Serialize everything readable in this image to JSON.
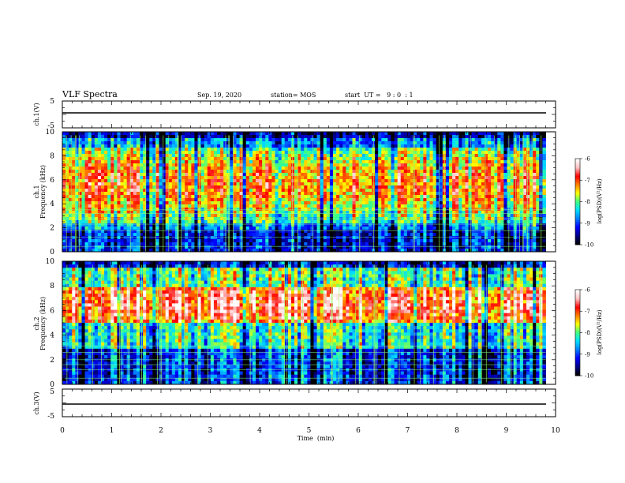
{
  "header": {
    "title": "VLF Spectra",
    "date": "Sep. 19, 2020",
    "station": "station= MOS",
    "start": "start  UT =   9 : 0  : 1"
  },
  "colors": {
    "colormap": [
      "#000000",
      "#00008b",
      "#0000ff",
      "#0080ff",
      "#00e0ff",
      "#40ff80",
      "#ffff00",
      "#ff8000",
      "#ff0000",
      "#ffc0c0",
      "#ffffff"
    ],
    "trace": "#000000"
  },
  "chart_data": [
    {
      "type": "line",
      "name": "ch1-waveform",
      "ylabel": "ch.1(V)",
      "ylim": [
        -5,
        5
      ],
      "yticks": [
        "5",
        "-5"
      ],
      "xlim": [
        0,
        10
      ],
      "series": [
        {
          "x": [
            0,
            9.8
          ],
          "y": [
            0,
            0
          ]
        }
      ]
    },
    {
      "type": "heatmap",
      "name": "ch1-spectrogram",
      "ylabel_lines": [
        "ch.1",
        "Frequency (kHz)"
      ],
      "ylim": [
        0,
        10
      ],
      "yticks": [
        "0",
        "2",
        "4",
        "6",
        "8",
        "10"
      ],
      "xlim": [
        0,
        10
      ],
      "data_x_end_min": 9.8,
      "band_peak_khz": [
        2.5,
        8.8
      ],
      "colorbar": {
        "label": "log(PSD)(V²/Hz)",
        "range": [
          -10,
          -6
        ],
        "ticks": [
          "-6",
          "-7",
          "-8",
          "-9",
          "-10"
        ]
      }
    },
    {
      "type": "heatmap",
      "name": "ch2-spectrogram",
      "ylabel_lines": [
        "ch.2",
        "Frequency (kHz)"
      ],
      "ylim": [
        0,
        10
      ],
      "yticks": [
        "0",
        "2",
        "4",
        "6",
        "8",
        "10"
      ],
      "xlim": [
        0,
        10
      ],
      "data_x_end_min": 9.8,
      "band_peak_khz": [
        5,
        8
      ],
      "colorbar": {
        "label": "log(PSD)(V²/Hz)",
        "range": [
          -10,
          -6
        ],
        "ticks": [
          "-6",
          "-7",
          "-8",
          "-9",
          "-10"
        ]
      }
    },
    {
      "type": "line",
      "name": "ch3-waveform",
      "ylabel": "ch.3(V)",
      "ylim": [
        -5,
        5
      ],
      "yticks": [
        "5",
        "-5"
      ],
      "xlim": [
        0,
        10
      ],
      "xlabel": "Time  (min)",
      "xticks": [
        "0",
        "1",
        "2",
        "3",
        "4",
        "5",
        "6",
        "7",
        "8",
        "9",
        "10"
      ],
      "series": [
        {
          "x": [
            0,
            9.8
          ],
          "y": [
            0,
            0
          ]
        }
      ]
    }
  ]
}
